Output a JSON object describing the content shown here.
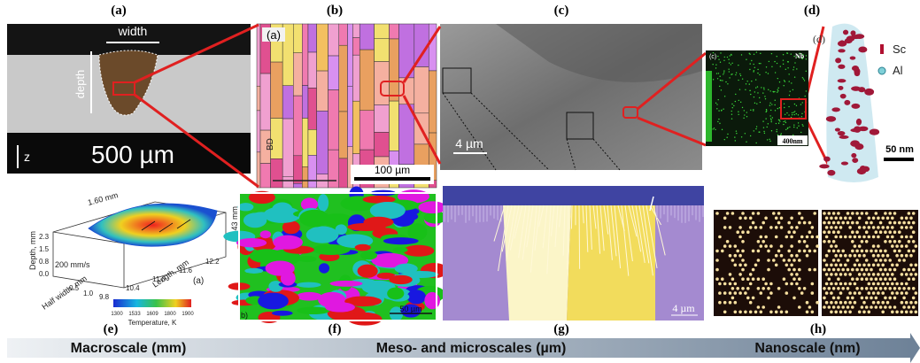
{
  "panel_labels": [
    "(a)",
    "(b)",
    "(c)",
    "(d)",
    "(e)",
    "(f)",
    "(g)",
    "(h)"
  ],
  "macro": {
    "width": "width",
    "depth": "depth",
    "scale": "500 µm",
    "axis": "z"
  },
  "ebsd": {
    "inset_label": "(a)",
    "scale": "100 µm",
    "direction": "BD"
  },
  "sem": {
    "scale": "4 µm"
  },
  "apt": {
    "inset_label": "(c)",
    "element": "Nb",
    "inset_scale": "400nm",
    "sub_label": "(d)",
    "legend": [
      "Sc",
      "Al"
    ],
    "scale": "50 nm"
  },
  "simulation": {
    "length_label": "1.60 mm",
    "depth_label": "0.43 mm",
    "speed": "200 mm/s",
    "depth_axis": "Depth, mm",
    "depth_ticks": [
      "2.3",
      "1.5",
      "0.8",
      "0.0"
    ],
    "width_axis": "Half width, mm",
    "width_ticks": [
      "0.5",
      "1.0"
    ],
    "length_axis": "Length, mm",
    "length_ticks": [
      "9.8",
      "10.4",
      "11.0",
      "11.6",
      "12.2"
    ],
    "inset_label": "(a)",
    "colorbar_ticks": [
      "1300",
      "1533",
      "1609",
      "1800",
      "1900"
    ],
    "colorbar_title": "Temperature, K"
  },
  "grain_map": {
    "inset_label": "b)",
    "scale": "50 µm"
  },
  "phase_field": {
    "scale": "4 µm"
  },
  "scale_bar": [
    "Macroscale (mm)",
    "Meso- and microscales (µm)",
    "Nanoscale (nm)"
  ]
}
